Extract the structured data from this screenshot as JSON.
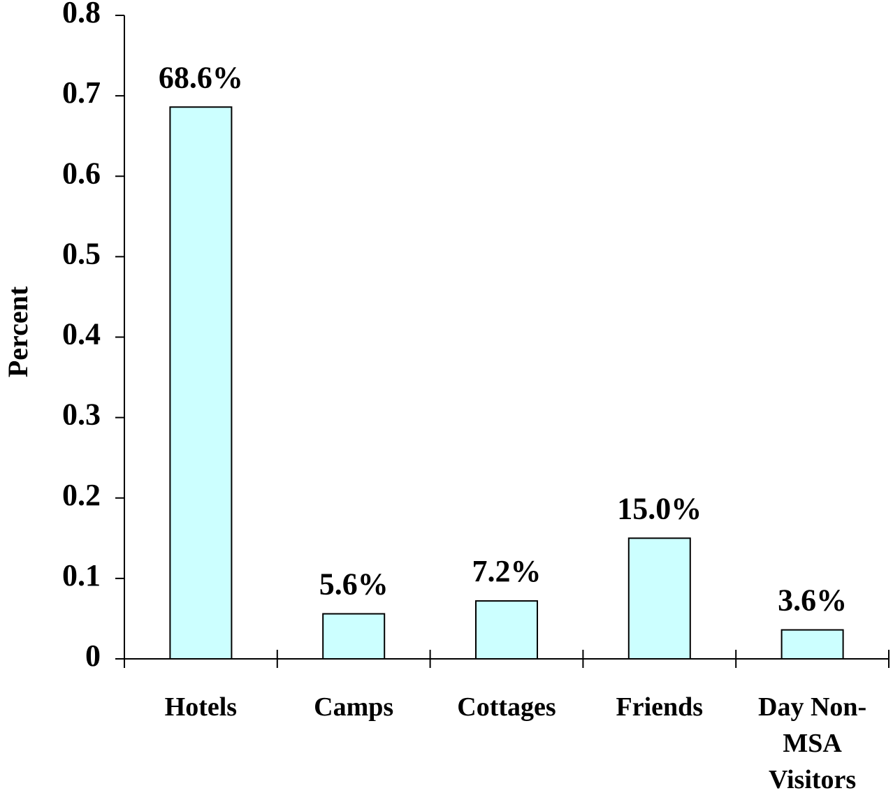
{
  "chart_data": {
    "type": "bar",
    "y_label": "Percent",
    "categories": [
      "Hotels",
      "Camps",
      "Cottages",
      "Friends",
      "Day Non-MSA Visitors"
    ],
    "values": [
      0.686,
      0.056,
      0.072,
      0.15,
      0.036
    ],
    "value_labels": [
      "68.6%",
      "5.6%",
      "7.2%",
      "15.0%",
      "3.6%"
    ],
    "color": "#ccffff",
    "ylim": [
      0,
      0.8
    ],
    "yticks": [
      0,
      0.1,
      0.2,
      0.3,
      0.4,
      0.5,
      0.6,
      0.7,
      0.8
    ],
    "grid": false
  }
}
